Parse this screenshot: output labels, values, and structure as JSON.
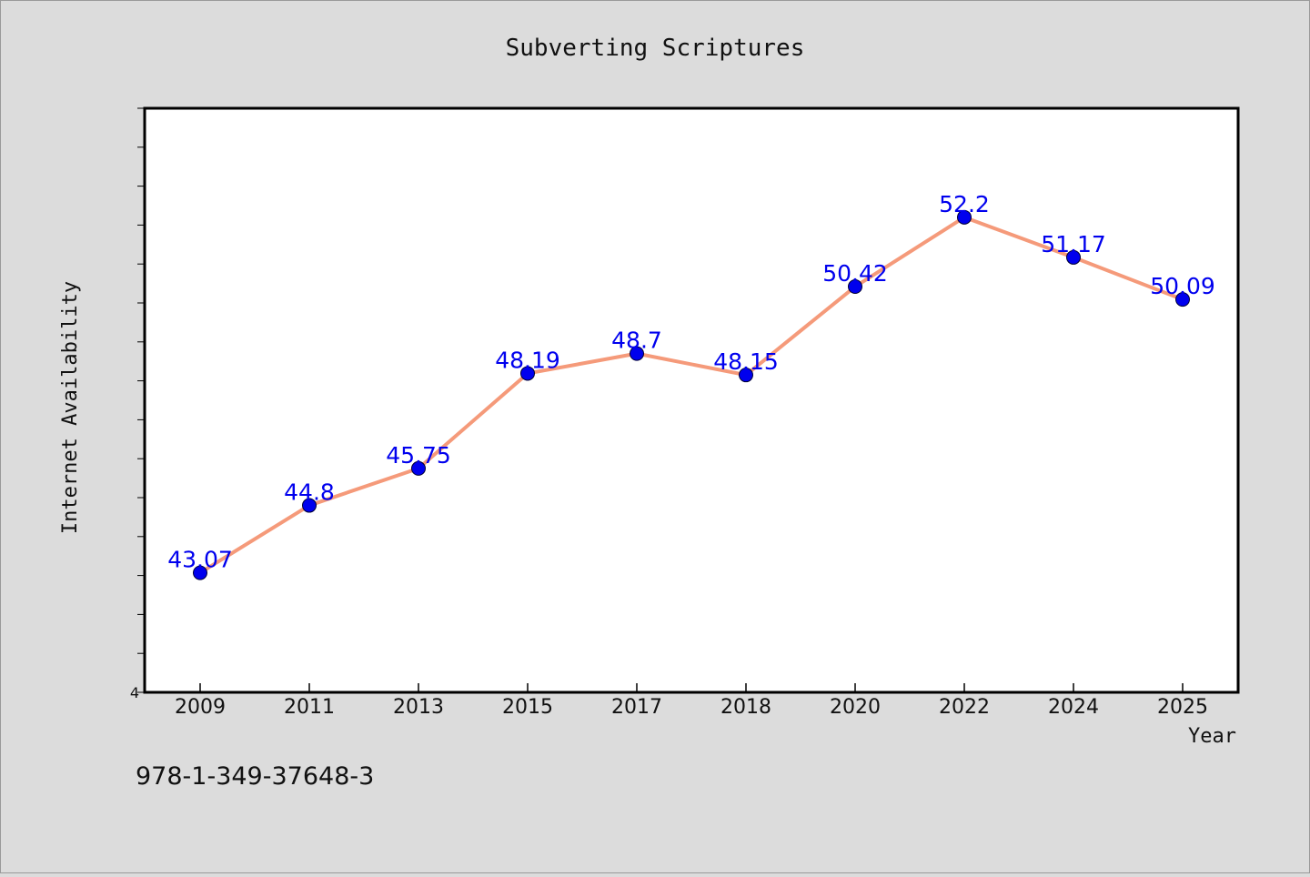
{
  "footer_text": "978-1-349-37648-3",
  "colors": {
    "background": "#dcdcdc",
    "plot_background": "#ffffff",
    "line": "#f59a7a",
    "marker": "#0000ee",
    "data_label": "#0000ee"
  },
  "chart_data": {
    "type": "line",
    "title": "Subverting Scriptures",
    "xlabel": "Year",
    "ylabel": "Internet Availability",
    "categories": [
      "2009",
      "2011",
      "2013",
      "2015",
      "2017",
      "2018",
      "2020",
      "2022",
      "2024",
      "2025"
    ],
    "series": [
      {
        "values": [
          43.07,
          44.8,
          45.75,
          48.19,
          48.7,
          48.15,
          50.42,
          52.2,
          51.17,
          50.09
        ],
        "data_labels": [
          "43.07",
          "44.8",
          "45.75",
          "48.19",
          "48.7",
          "48.15",
          "50.42",
          "52.2",
          "51.17",
          "50.09"
        ]
      }
    ],
    "ylim": [
      40,
      55
    ],
    "y_minor_step": 1,
    "y_tick_labels": [
      {
        "value": 40,
        "label": "4"
      }
    ],
    "grid": false,
    "legend": "none"
  }
}
